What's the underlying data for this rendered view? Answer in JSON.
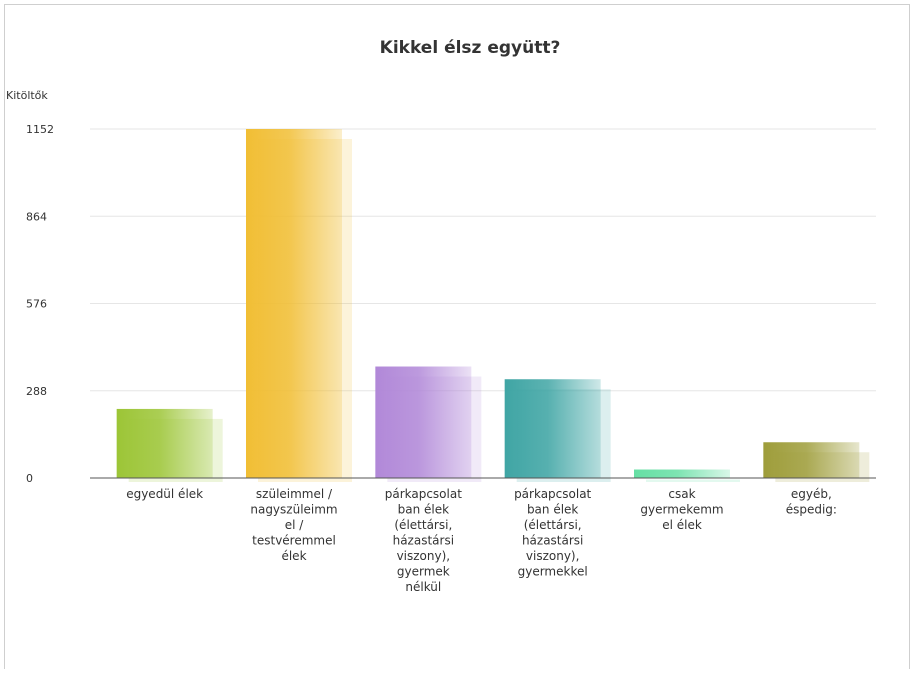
{
  "chart_data": {
    "type": "bar",
    "title": "Kikkel élsz együtt?",
    "xlabel": "",
    "ylabel": "Kitöltők",
    "ylim": [
      0,
      1152
    ],
    "yticks": [
      0,
      288,
      576,
      864,
      1152
    ],
    "grid": true,
    "categories": [
      [
        "egyedül élek"
      ],
      [
        "szüleimmel /",
        "nagyszüleimm",
        "el /",
        "testvéremmel",
        "élek"
      ],
      [
        "párkapcsolat",
        "ban élek",
        "(élettársi,",
        "házastársi",
        "viszony),",
        "gyermek",
        "nélkül"
      ],
      [
        "párkapcsolat",
        "ban élek",
        "(élettársi,",
        "házastársi",
        "viszony),",
        "gyermekkel"
      ],
      [
        "csak",
        "gyermekemm",
        "el élek"
      ],
      [
        "egyéb,",
        "éspedig:"
      ]
    ],
    "values": [
      228,
      1152,
      368,
      326,
      28,
      118
    ],
    "colors": [
      "#9cc536",
      "#f1be34",
      "#b188d8",
      "#3fa5a4",
      "#66dfa4",
      "#9e9d3a"
    ]
  }
}
